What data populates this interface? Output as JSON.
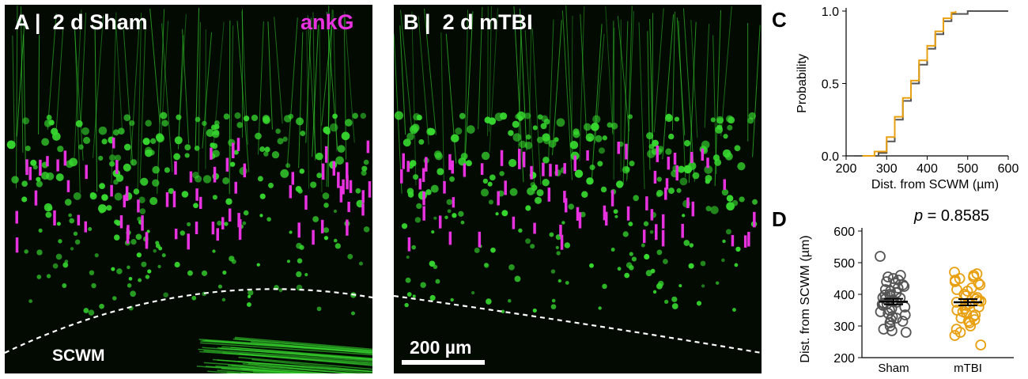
{
  "panels": {
    "A": {
      "letter": "A",
      "sep": "|",
      "title": "2 d Sham",
      "marker": "ankG",
      "region": "SCWM"
    },
    "B": {
      "letter": "B",
      "sep": "|",
      "title": "2 d mTBI",
      "scale_bar": "200 µm"
    },
    "C": {
      "letter": "C"
    },
    "D": {
      "letter": "D",
      "pvalue_prefix": "p",
      "pvalue_text": " = 0.8585"
    }
  },
  "colors": {
    "sham": "#555555",
    "mtbi": "#e8a010",
    "ankG": "#e832e0",
    "neuron": "#37d82f",
    "background": "#020a02"
  },
  "chart_data": [
    {
      "type": "line",
      "panel": "C",
      "title": "",
      "xlabel": "Dist. from SCWM (µm)",
      "ylabel": "Probability",
      "xlim": [
        200,
        600
      ],
      "ylim": [
        0,
        1
      ],
      "xticks": [
        "200",
        "300",
        "400",
        "500",
        "600"
      ],
      "yticks": [
        "0.0",
        "0.5",
        "1.0"
      ],
      "series": [
        {
          "color": "#555555",
          "x": [
            220,
            280,
            300,
            320,
            340,
            360,
            380,
            400,
            420,
            440,
            460,
            500,
            600
          ],
          "y": [
            0.0,
            0.02,
            0.1,
            0.25,
            0.38,
            0.5,
            0.63,
            0.74,
            0.84,
            0.93,
            0.98,
            1.0,
            1.0
          ]
        },
        {
          "color": "#e8a010",
          "x": [
            240,
            270,
            300,
            320,
            340,
            360,
            380,
            400,
            420,
            440,
            460,
            470
          ],
          "y": [
            0.0,
            0.03,
            0.13,
            0.27,
            0.4,
            0.52,
            0.66,
            0.76,
            0.86,
            0.95,
            0.99,
            1.0
          ]
        }
      ]
    },
    {
      "type": "scatter",
      "panel": "D",
      "title": "",
      "ylabel": "Dist. from SCWM (µm)",
      "categories": [
        "Sham",
        "mTBI"
      ],
      "ylim": [
        200,
        600
      ],
      "yticks": [
        "200",
        "300",
        "400",
        "500",
        "600"
      ],
      "series": [
        {
          "color": "#555555",
          "mean": 377,
          "sem": 9,
          "values": [
            520,
            460,
            455,
            450,
            445,
            440,
            435,
            430,
            425,
            420,
            415,
            410,
            405,
            400,
            398,
            395,
            390,
            388,
            385,
            380,
            378,
            375,
            372,
            370,
            368,
            365,
            360,
            355,
            350,
            345,
            340,
            335,
            330,
            325,
            320,
            315,
            310,
            300,
            290,
            285,
            280
          ]
        },
        {
          "color": "#e8a010",
          "mean": 375,
          "sem": 10,
          "values": [
            470,
            465,
            460,
            455,
            450,
            445,
            440,
            435,
            430,
            420,
            415,
            410,
            400,
            395,
            390,
            385,
            380,
            378,
            375,
            370,
            365,
            360,
            355,
            350,
            345,
            340,
            335,
            330,
            325,
            320,
            315,
            310,
            300,
            290,
            280,
            270,
            240
          ]
        }
      ]
    }
  ]
}
